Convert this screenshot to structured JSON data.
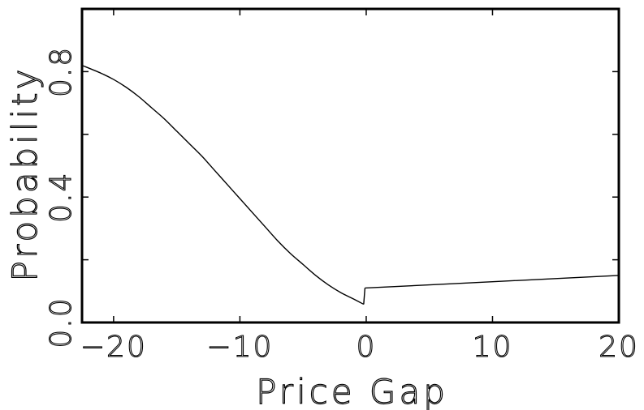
{
  "chart_data": {
    "type": "line",
    "title": "",
    "xlabel": "Price Gap",
    "ylabel": "Probability",
    "xlim": [
      -22.5,
      20
    ],
    "ylim": [
      0.0,
      1.0
    ],
    "x_ticks": [
      -20,
      -10,
      0,
      10,
      20
    ],
    "x_tick_labels": [
      "−20",
      "−10",
      "0",
      "10",
      "20"
    ],
    "y_ticks": [
      0.0,
      0.4,
      0.8
    ],
    "y_tick_labels": [
      "0.0",
      "0.4",
      "0.8"
    ],
    "y_minor_ticks": [
      0.2,
      0.6
    ],
    "grid": false,
    "line_color": "#000000",
    "series": [
      {
        "segment": "negative",
        "x": [
          -22.5,
          -21,
          -20,
          -19,
          -18,
          -17,
          -16,
          -15,
          -14,
          -13,
          -12,
          -11,
          -10,
          -9,
          -8,
          -7,
          -6,
          -5,
          -4,
          -3,
          -2,
          -1,
          -0.2
        ],
        "y": [
          0.82,
          0.795,
          0.775,
          0.75,
          0.72,
          0.685,
          0.65,
          0.61,
          0.57,
          0.53,
          0.485,
          0.44,
          0.395,
          0.35,
          0.305,
          0.26,
          0.22,
          0.185,
          0.15,
          0.12,
          0.095,
          0.075,
          0.058
        ]
      },
      {
        "segment": "jump",
        "x": [
          -0.2,
          -0.1
        ],
        "y": [
          0.058,
          0.11
        ]
      },
      {
        "segment": "positive",
        "x": [
          -0.1,
          5,
          10,
          15,
          20
        ],
        "y": [
          0.11,
          0.12,
          0.13,
          0.14,
          0.15
        ]
      }
    ]
  }
}
